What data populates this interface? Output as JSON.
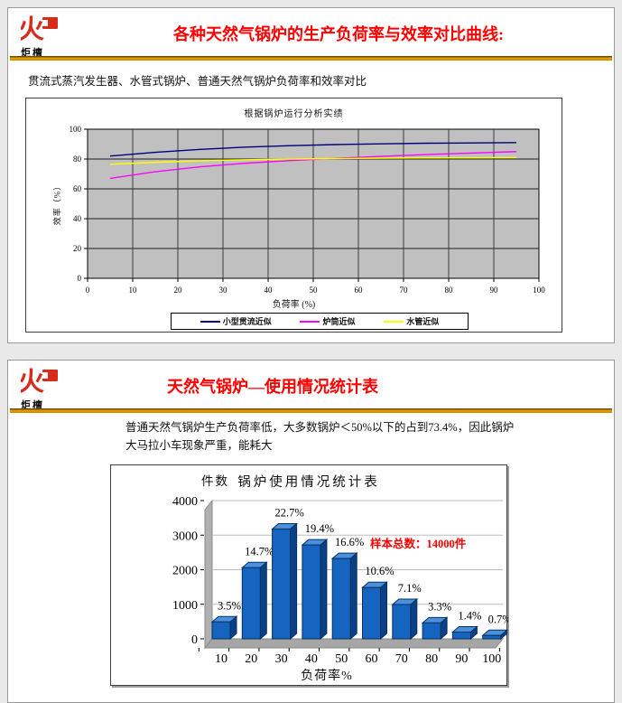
{
  "page": {
    "background": "#e9e9e9"
  },
  "brand": {
    "logo_text": "炬檀",
    "logo_color": "#d92b1c"
  },
  "slide1": {
    "title": "各种天然气锅炉的生产负荷率与效率对比曲线:",
    "subtitle": "贯流式蒸汽发生器、水管式锅炉、普通天然气锅炉负荷率和效率对比"
  },
  "slide2": {
    "title": "天然气锅炉—使用情况统计表",
    "body": "普通天然气锅炉生产负荷率低，大多数锅炉＜50%以下的占到73.4%，因此锅炉大马拉小车现象严重，能耗大"
  },
  "chart_data": [
    {
      "type": "line",
      "title": "根据锅炉运行分析实绩",
      "xlabel": "负荷率 (%)",
      "ylabel": "效率（%）",
      "xlim": [
        0,
        100
      ],
      "ylim": [
        0,
        100
      ],
      "xticks": [
        0,
        10,
        20,
        30,
        40,
        50,
        60,
        70,
        80,
        90,
        100
      ],
      "yticks": [
        0,
        20,
        40,
        60,
        80,
        100
      ],
      "grid": true,
      "plot_background": "#c0c0c0",
      "grid_color": "#3c3c3c",
      "legend_position": "bottom",
      "x": [
        5,
        15,
        25,
        35,
        45,
        55,
        65,
        75,
        85,
        95
      ],
      "series": [
        {
          "name": "小型贯流近似",
          "color": "#000080",
          "values": [
            82,
            84.5,
            86.5,
            88,
            89,
            89.7,
            90.2,
            90.6,
            90.8,
            91
          ]
        },
        {
          "name": "炉筒近似",
          "color": "#ff00ff",
          "values": [
            67,
            71.5,
            74.8,
            77.2,
            79,
            80.5,
            81.8,
            83,
            84,
            85
          ]
        },
        {
          "name": "水管近似",
          "color": "#ffff00",
          "values": [
            76.5,
            77.8,
            78.8,
            79.5,
            80,
            80.3,
            80.6,
            80.8,
            80.9,
            81
          ]
        }
      ]
    },
    {
      "type": "bar",
      "title": "锅炉使用情况统计表",
      "xlabel": "负荷率%",
      "ylabel": "件数",
      "categories": [
        "10",
        "20",
        "30",
        "40",
        "50",
        "60",
        "70",
        "80",
        "90",
        "100"
      ],
      "values": [
        490,
        2058,
        3178,
        2716,
        2324,
        1484,
        994,
        462,
        196,
        98
      ],
      "percent_labels": [
        "3.5%",
        "14.7%",
        "22.7%",
        "19.4%",
        "16.6%",
        "10.6%",
        "7.1%",
        "3.3%",
        "1.4%",
        "0.7%"
      ],
      "annotation": "样本总数：14000件",
      "annotation_color": "#ff0000",
      "ylim": [
        0,
        4000
      ],
      "yticks": [
        0,
        1000,
        2000,
        3000,
        4000
      ],
      "bar_color": "#1565c0",
      "bar_top_color": "#4a90dd",
      "bar_side_color": "#0b3f86",
      "bar_stroke": "#06305f"
    }
  ]
}
